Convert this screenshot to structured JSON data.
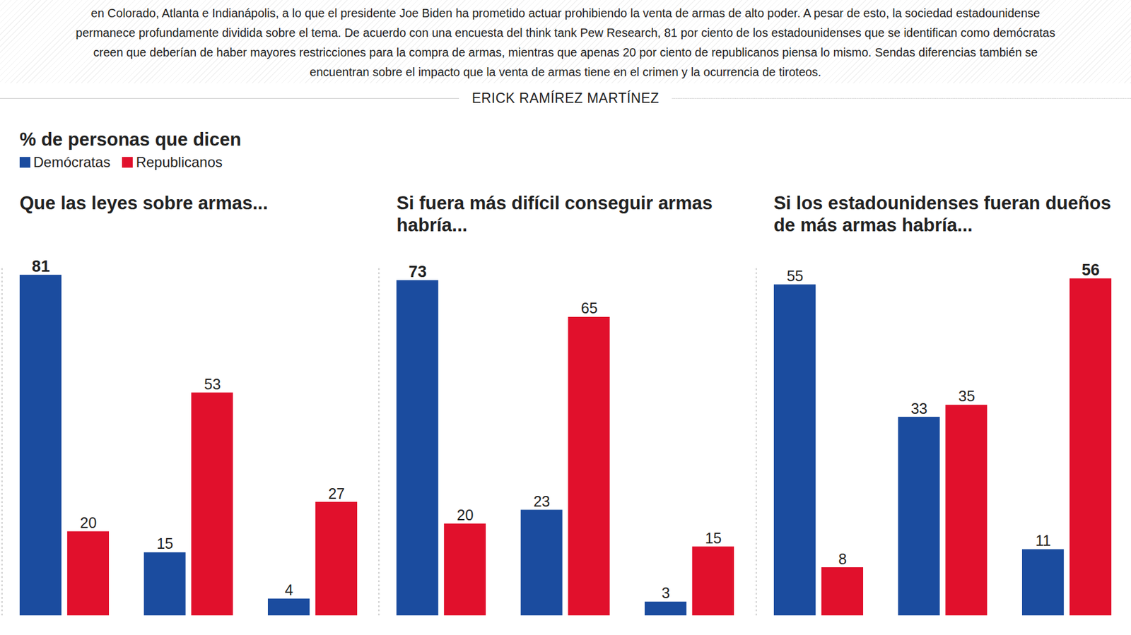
{
  "header": {
    "text": "en Colorado, Atlanta e Indianápolis, a lo que el presidente Joe Biden ha prometido actuar prohibiendo la venta de armas de alto poder. A pesar de esto, la sociedad estadounidense permanece profundamente dividida sobre el tema. De acuerdo con una encuesta del think tank Pew Research, 81 por ciento de los estadounidenses que se identifican como demócratas creen que deberían de haber mayores restricciones para la compra de armas, mientras que apenas 20 por ciento de republicanos piensa lo mismo. Sendas diferencias también se encuentran sobre el impacto que la venta de armas tiene en el crimen y la ocurrencia de tiroteos.",
    "byline": "ERICK RAMÍREZ MARTÍNEZ",
    "heading": "% de personas que dicen"
  },
  "chart_data": [
    {
      "type": "bar",
      "title": "Que las leyes sobre armas...",
      "categories": [
        null,
        null,
        null
      ],
      "series": [
        {
          "name": "Demócratas",
          "color": "#1b4c9f",
          "values": [
            81,
            15,
            4
          ]
        },
        {
          "name": "Republicanos",
          "color": "#e1102c",
          "values": [
            20,
            53,
            27
          ]
        }
      ],
      "ylim": [
        0,
        83
      ],
      "yticks": [],
      "tick_labels": false,
      "data_labels": true,
      "legend": "top-left"
    },
    {
      "type": "bar",
      "title": "Si fuera más difícil conseguir armas habría...",
      "categories": [
        null,
        null,
        null
      ],
      "series": [
        {
          "name": "Demócratas",
          "color": "#1b4c9f",
          "values": [
            73,
            23,
            3
          ]
        },
        {
          "name": "Republicanos",
          "color": "#e1102c",
          "values": [
            20,
            65,
            15
          ]
        }
      ],
      "ylim": [
        0,
        76
      ],
      "yticks": [],
      "tick_labels": false,
      "data_labels": true
    },
    {
      "type": "bar",
      "title": "Si los estadounidenses fueran dueños de más armas habría...",
      "categories": [
        null,
        null,
        null
      ],
      "series": [
        {
          "name": "Demócratas",
          "color": "#1b4c9f",
          "values": [
            55,
            33,
            11
          ]
        },
        {
          "name": "Republicanos",
          "color": "#e1102c",
          "values": [
            8,
            35,
            56
          ]
        }
      ],
      "ylim": [
        0,
        58
      ],
      "yticks": [],
      "tick_labels": false,
      "data_labels": true
    }
  ]
}
